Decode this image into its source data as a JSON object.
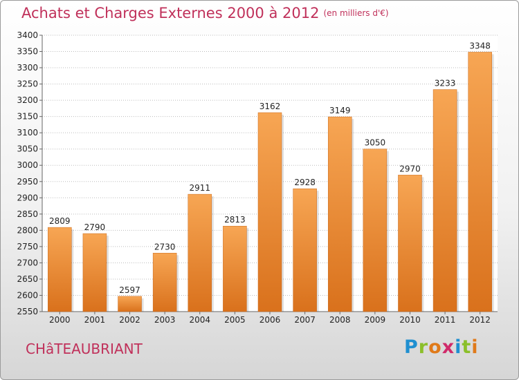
{
  "title": {
    "main": "Achats et Charges Externes 2000 à 2012",
    "unit": "(en milliers d'€)"
  },
  "location": "CHâTEAUBRIANT",
  "brand": {
    "text": "Proxiti",
    "letters": [
      {
        "ch": "P",
        "color": "#1f8fd0"
      },
      {
        "ch": "r",
        "color": "#8bbf2a"
      },
      {
        "ch": "o",
        "color": "#e07a1a"
      },
      {
        "ch": "x",
        "color": "#d02a6a"
      },
      {
        "ch": "i",
        "color": "#1f8fd0"
      },
      {
        "ch": "t",
        "color": "#8bbf2a"
      },
      {
        "ch": "i",
        "color": "#e07a1a"
      }
    ]
  },
  "colors": {
    "accent": "#c0305a",
    "bar_light": "#f7a654",
    "bar_dark": "#d9711c",
    "grid": "#bbbbbb"
  },
  "chart_data": {
    "type": "bar",
    "title": "Achats et Charges Externes 2000 à 2012",
    "subtitle": "(en milliers d'€)",
    "categories": [
      "2000",
      "2001",
      "2002",
      "2003",
      "2004",
      "2005",
      "2006",
      "2007",
      "2008",
      "2009",
      "2010",
      "2011",
      "2012"
    ],
    "values": [
      2809,
      2790,
      2597,
      2730,
      2911,
      2813,
      3162,
      2928,
      3149,
      3050,
      2970,
      3233,
      3348
    ],
    "ylim": [
      2550,
      3400
    ],
    "yticks": [
      2550,
      2600,
      2650,
      2700,
      2750,
      2800,
      2850,
      2900,
      2950,
      3000,
      3050,
      3100,
      3150,
      3200,
      3250,
      3300,
      3350,
      3400
    ],
    "xlabel": "",
    "ylabel": "",
    "grid": true,
    "legend": "none"
  }
}
